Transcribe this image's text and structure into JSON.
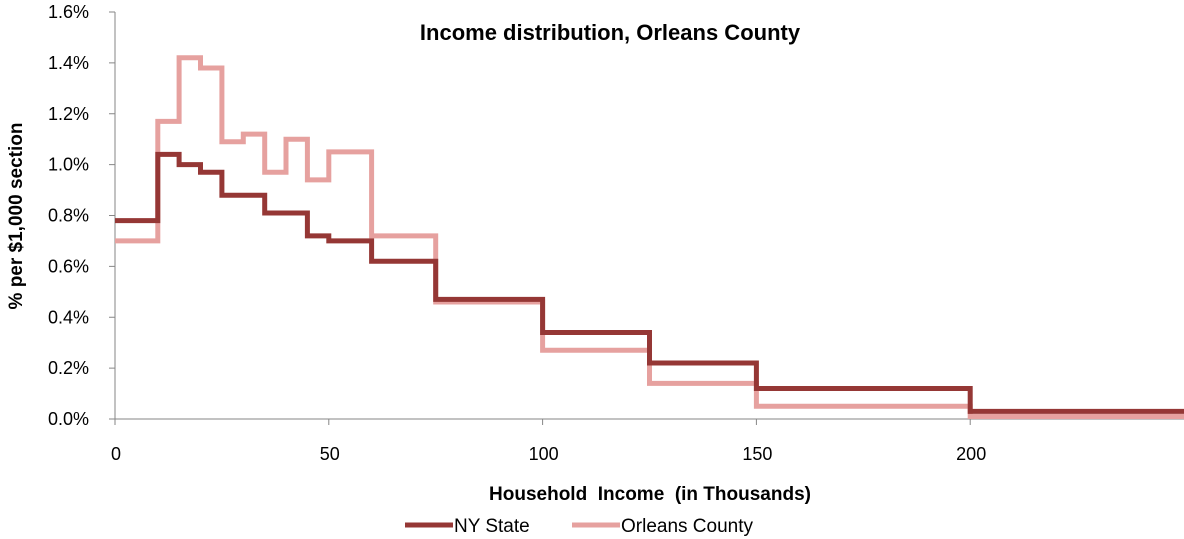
{
  "chart_data": {
    "type": "line",
    "step": true,
    "title": "Income distribution, Orleans County",
    "xlabel": "Household  Income  (in Thousands)",
    "ylabel": "% per $1,000 section",
    "xlim": [
      0,
      250
    ],
    "ylim": [
      0,
      1.6
    ],
    "x_ticks": [
      0,
      50,
      100,
      150,
      200
    ],
    "x_tick_labels": [
      "0",
      "50",
      "100",
      "150",
      "200"
    ],
    "y_ticks": [
      0,
      0.2,
      0.4,
      0.6,
      0.8,
      1.0,
      1.2,
      1.4,
      1.6
    ],
    "y_tick_labels": [
      "0.0%",
      "0.2%",
      "0.4%",
      "0.6%",
      "0.8%",
      "1.0%",
      "1.2%",
      "1.4%",
      "1.6%"
    ],
    "grid": false,
    "legend_position": "bottom",
    "bins": [
      [
        0,
        10
      ],
      [
        10,
        15
      ],
      [
        15,
        20
      ],
      [
        20,
        25
      ],
      [
        25,
        30
      ],
      [
        30,
        35
      ],
      [
        35,
        40
      ],
      [
        40,
        45
      ],
      [
        45,
        50
      ],
      [
        50,
        60
      ],
      [
        60,
        75
      ],
      [
        75,
        100
      ],
      [
        100,
        125
      ],
      [
        125,
        150
      ],
      [
        150,
        200
      ],
      [
        200,
        250
      ]
    ],
    "series": [
      {
        "name": "NY State",
        "color": "#953735",
        "values": [
          0.78,
          1.04,
          1.0,
          0.97,
          0.88,
          0.88,
          0.81,
          0.81,
          0.72,
          0.7,
          0.62,
          0.47,
          0.34,
          0.22,
          0.12,
          0.03
        ]
      },
      {
        "name": "Orleans County",
        "color": "#E6A19F",
        "values": [
          0.7,
          1.17,
          1.42,
          1.38,
          1.09,
          1.12,
          0.97,
          1.1,
          0.94,
          1.05,
          0.72,
          0.46,
          0.27,
          0.14,
          0.05,
          0.01
        ]
      }
    ]
  }
}
